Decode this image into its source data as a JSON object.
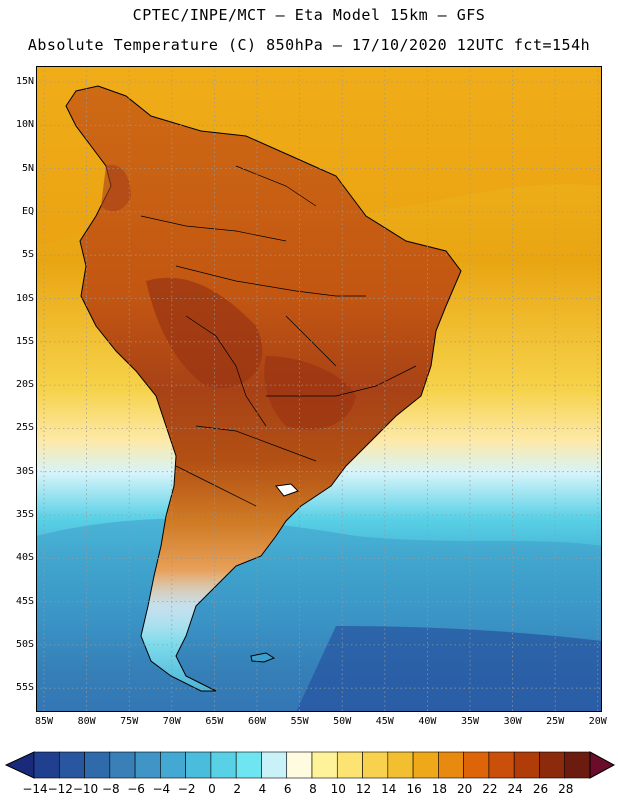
{
  "header": {
    "line1": "CPTEC/INPE/MCT —  Eta Model 15km — GFS",
    "line2": "Absolute Temperature (C) 850hPa — 17/10/2020 12UTC fct=154h"
  },
  "axes": {
    "lat_labels": [
      "15N",
      "10N",
      "5N",
      "EQ",
      "5S",
      "10S",
      "15S",
      "20S",
      "25S",
      "30S",
      "35S",
      "40S",
      "45S",
      "50S",
      "55S"
    ],
    "lon_labels": [
      "85W",
      "80W",
      "75W",
      "70W",
      "65W",
      "60W",
      "55W",
      "50W",
      "45W",
      "40W",
      "35W",
      "30W",
      "25W",
      "20W"
    ]
  },
  "colorbar": {
    "labels": [
      "-14",
      "-12",
      "-10",
      "-8",
      "-6",
      "-4",
      "-2",
      "0",
      "2",
      "4",
      "6",
      "8",
      "10",
      "12",
      "14",
      "16",
      "18",
      "20",
      "22",
      "24",
      "26",
      "28"
    ],
    "colors": [
      "#20408f",
      "#2857a0",
      "#2f6aab",
      "#3a80b8",
      "#3e95c6",
      "#44a9d2",
      "#4abcdc",
      "#58d0e6",
      "#6ee5f0",
      "#c8f2f8",
      "#fffbe0",
      "#fff39a",
      "#fde472",
      "#f8d24e",
      "#f2bf30",
      "#eea81a",
      "#e88a10",
      "#dd6408",
      "#c94f0a",
      "#b03c0a",
      "#8c2a0c",
      "#6c1c0e"
    ],
    "under_color": "#1a2a7a",
    "over_color": "#6a0d2a"
  },
  "map": {
    "grid": "dotted",
    "ocean_gradient": [
      "#f2bb22",
      "#e9a512",
      "#f6d24a",
      "#fde9a8",
      "#d6f4fa",
      "#5ad1e6",
      "#3eaacf",
      "#3488bf",
      "#2a60a4",
      "#24479a"
    ],
    "land_gradient": [
      "#ce6a14",
      "#c25612",
      "#a84216",
      "#b25014",
      "#cf7a24",
      "#e8a058"
    ]
  }
}
